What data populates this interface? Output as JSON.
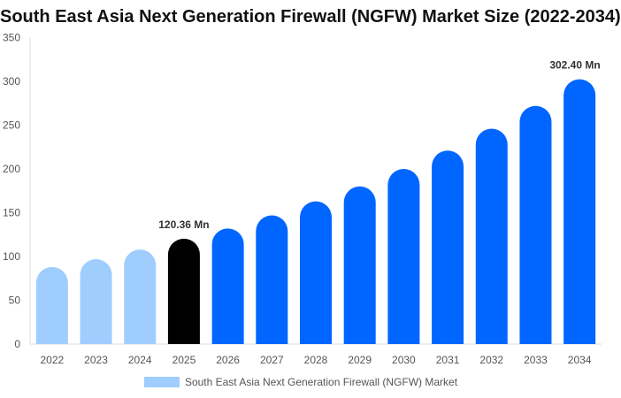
{
  "chart_data": {
    "type": "bar",
    "title": "South East Asia Next Generation Firewall (NGFW) Market Size (2022-2034)",
    "categories": [
      "2022",
      "2023",
      "2024",
      "2025",
      "2026",
      "2027",
      "2028",
      "2029",
      "2030",
      "2031",
      "2032",
      "2033",
      "2034"
    ],
    "series": [
      {
        "name": "South East Asia Next Generation Firewall (NGFW) Market",
        "values": [
          88,
          97,
          108,
          120.36,
          132,
          147,
          163,
          180,
          200,
          221,
          246,
          272,
          302.4
        ]
      }
    ],
    "data_labels": {
      "3": "120.36 Mn",
      "12": "302.40 Mn"
    },
    "ylim": [
      0,
      350
    ],
    "yticks": [
      0,
      50,
      100,
      150,
      200,
      250,
      300,
      350
    ],
    "grid": false,
    "legend": "bottom",
    "colors": {
      "historical": "#9fcdfd",
      "base_year": "#000000",
      "forecast": "#0066ff"
    }
  }
}
